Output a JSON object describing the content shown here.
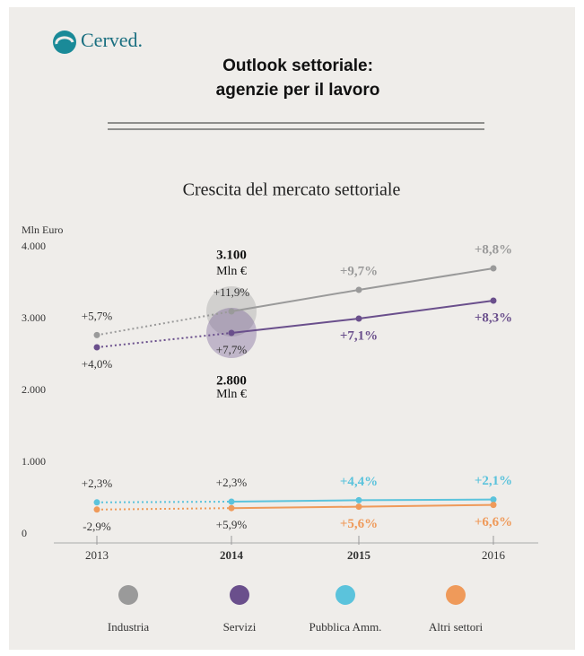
{
  "logo": "Cerved.",
  "header": {
    "title_lines": [
      "Outlook settoriale:",
      "agenzie per il lavoro"
    ]
  },
  "chart_data": {
    "type": "line",
    "title": "Crescita del mercato settoriale",
    "y_label": "Mln Euro",
    "categories": [
      "2013",
      "2014",
      "2015",
      "2016"
    ],
    "bold_categories": [
      false,
      true,
      true,
      false
    ],
    "ylim": [
      0,
      4000
    ],
    "yticks": [
      0,
      {
        "value": 1000,
        "label": "1.000"
      },
      {
        "value": 2000,
        "label": "2.000"
      },
      {
        "value": 3000,
        "label": "3.000"
      },
      {
        "value": 4000,
        "label": "4.000"
      }
    ],
    "series": [
      {
        "name": "Industria",
        "color": "#9a9a9a",
        "values": [
          2770,
          3100,
          3400,
          3700
        ],
        "growth_labels": [
          "+5,7%",
          "+11,9%",
          "+9,7%",
          "+8,8%"
        ],
        "label_side": "above"
      },
      {
        "name": "Servizi",
        "color": "#6a4f8c",
        "values": [
          2600,
          2800,
          3000,
          3250
        ],
        "growth_labels": [
          "+4,0%",
          "+7,7%",
          "+7,1%",
          "+8,3%"
        ],
        "label_side": "below"
      },
      {
        "name": "Pubblica Amm.",
        "color": "#5bc3dc",
        "values": [
          440,
          450,
          470,
          480
        ],
        "growth_labels": [
          "+2,3%",
          "+2,3%",
          "+4,4%",
          "+2,1%"
        ],
        "label_side": "above"
      },
      {
        "name": "Altri settori",
        "color": "#ef9a5a",
        "values": [
          340,
          360,
          380,
          405
        ],
        "growth_labels": [
          "-2,9%",
          "+5,9%",
          "+5,6%",
          "+6,6%"
        ],
        "label_side": "below"
      }
    ],
    "annotations": [
      {
        "text": "3.100",
        "unit": "Mln €"
      },
      {
        "text": "2.800",
        "unit": "Mln €"
      }
    ]
  }
}
